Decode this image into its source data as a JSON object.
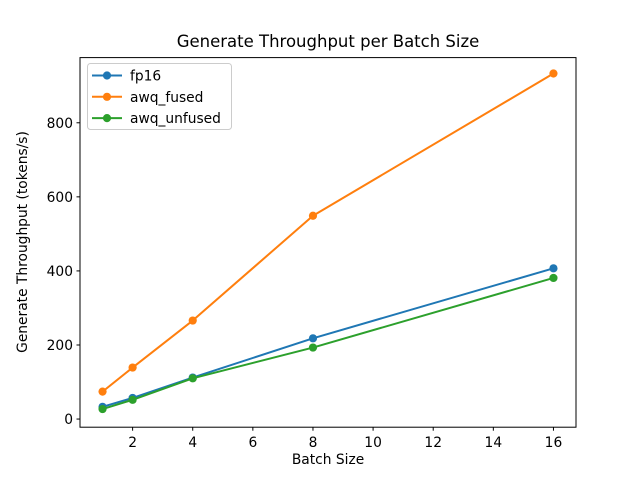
{
  "chart_data": {
    "type": "line",
    "title": "Generate Throughput per Batch Size",
    "xlabel": "Batch Size",
    "ylabel": "Generate Throughput (tokens/s)",
    "x": [
      1,
      2,
      4,
      8,
      16
    ],
    "series": [
      {
        "name": "fp16",
        "color": "#1f77b4",
        "values": [
          33,
          57,
          112,
          218,
          407
        ]
      },
      {
        "name": "awq_fused",
        "color": "#ff7f0e",
        "values": [
          74,
          139,
          266,
          549,
          933
        ]
      },
      {
        "name": "awq_unfused",
        "color": "#2ca02c",
        "values": [
          27,
          52,
          110,
          193,
          381
        ]
      }
    ],
    "xticks": [
      "2",
      "4",
      "6",
      "8",
      "10",
      "12",
      "14",
      "16"
    ],
    "xtick_values": [
      2,
      4,
      6,
      8,
      10,
      12,
      14,
      16
    ],
    "yticks": [
      "0",
      "200",
      "400",
      "600",
      "800"
    ],
    "ytick_values": [
      0,
      200,
      400,
      600,
      800
    ],
    "xlim": [
      0.25,
      16.75
    ],
    "ylim": [
      -22,
      976
    ],
    "grid": false,
    "legend_position": "upper left",
    "marker": "circle"
  },
  "style": {
    "background": "#ffffff",
    "axis_color": "#000000",
    "text_color": "#000000",
    "legend_border": "#cccccc",
    "legend_fill": "#ffffff"
  }
}
